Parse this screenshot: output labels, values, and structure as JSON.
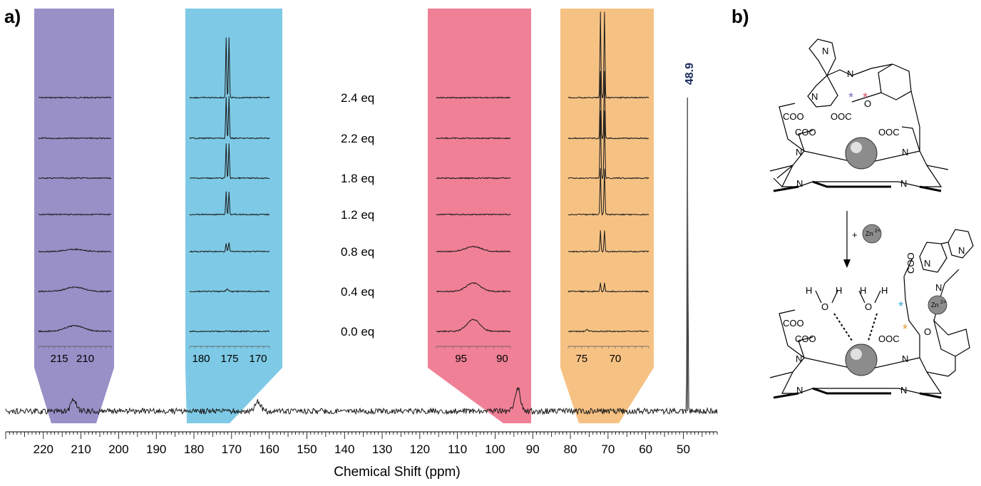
{
  "panel_labels": {
    "a": "a)",
    "b": "b)"
  },
  "colors": {
    "purple": "#9990c8",
    "blue": "#7ecae6",
    "pink": "#f08096",
    "orange": "#f6c284",
    "trace": "#1a1a1a",
    "navy": "#1a2a5a"
  },
  "chart_data": {
    "type": "line",
    "xlabel": "Chemical Shift (ppm)",
    "xlim": [
      230,
      41
    ],
    "x_ticks": [
      220,
      210,
      200,
      190,
      180,
      170,
      160,
      150,
      140,
      130,
      120,
      110,
      100,
      90,
      80,
      70,
      60,
      50
    ],
    "peak_label": "48.9",
    "main_spectrum_peaks": [
      {
        "x": 212,
        "height": 16
      },
      {
        "x": 163,
        "height": 14
      },
      {
        "x": 94,
        "height": 32
      },
      {
        "x": 48.9,
        "height": 440
      }
    ],
    "titration_labels": [
      "2.4 eq",
      "2.2 eq",
      "1.8 eq",
      "1.2 eq",
      "0.8 eq",
      "0.4 eq",
      "0.0 eq"
    ],
    "insets": [
      {
        "name": "purple",
        "color": "purple",
        "axis_labels": [
          "215",
          "210"
        ],
        "axis_values": [
          215,
          210
        ],
        "range": [
          219,
          205
        ],
        "peaks": [
          [],
          [],
          [],
          [],
          [
            {
              "x": 212,
              "h": 3,
              "w": 2.5
            }
          ],
          [
            {
              "x": 212,
              "h": 6,
              "w": 2.5
            }
          ],
          [
            {
              "x": 212,
              "h": 8,
              "w": 2.5
            }
          ]
        ]
      },
      {
        "name": "blue",
        "color": "blue",
        "axis_labels": [
          "180",
          "175",
          "170"
        ],
        "axis_values": [
          180,
          175,
          170
        ],
        "range": [
          182,
          168
        ],
        "peaks": [
          [
            {
              "x": 175.6,
              "h": 85,
              "w": 0.12
            },
            {
              "x": 175.1,
              "h": 85,
              "w": 0.12
            }
          ],
          [
            {
              "x": 175.6,
              "h": 58,
              "w": 0.12
            },
            {
              "x": 175.1,
              "h": 58,
              "w": 0.12
            }
          ],
          [
            {
              "x": 175.6,
              "h": 48,
              "w": 0.12
            },
            {
              "x": 175.1,
              "h": 48,
              "w": 0.12
            }
          ],
          [
            {
              "x": 175.6,
              "h": 32,
              "w": 0.12
            },
            {
              "x": 175.1,
              "h": 32,
              "w": 0.12
            }
          ],
          [
            {
              "x": 175.6,
              "h": 12,
              "w": 0.14
            },
            {
              "x": 175.1,
              "h": 12,
              "w": 0.14
            }
          ],
          [
            {
              "x": 175.4,
              "h": 3,
              "w": 0.3
            }
          ],
          []
        ]
      },
      {
        "name": "pink",
        "color": "pink",
        "axis_labels": [
          "95",
          "90"
        ],
        "axis_values": [
          95,
          90
        ],
        "range": [
          98,
          89
        ],
        "peaks": [
          [],
          [],
          [],
          [],
          [
            {
              "x": 93.5,
              "h": 7,
              "w": 1.4
            }
          ],
          [
            {
              "x": 93.5,
              "h": 12,
              "w": 1.2
            }
          ],
          [
            {
              "x": 93.5,
              "h": 17,
              "w": 1.1
            }
          ]
        ]
      },
      {
        "name": "orange",
        "color": "orange",
        "axis_labels": [
          "75",
          "70"
        ],
        "axis_values": [
          75,
          70
        ],
        "range": [
          77,
          65
        ],
        "peaks": [
          [
            {
              "x": 72.2,
              "h": 120,
              "w": 0.1
            },
            {
              "x": 71.6,
              "h": 120,
              "w": 0.1
            }
          ],
          [
            {
              "x": 72.2,
              "h": 95,
              "w": 0.1
            },
            {
              "x": 71.6,
              "h": 95,
              "w": 0.1
            }
          ],
          [
            {
              "x": 72.2,
              "h": 95,
              "w": 0.1
            },
            {
              "x": 71.6,
              "h": 95,
              "w": 0.1
            }
          ],
          [
            {
              "x": 72.2,
              "h": 65,
              "w": 0.1
            },
            {
              "x": 71.6,
              "h": 65,
              "w": 0.1
            }
          ],
          [
            {
              "x": 72.2,
              "h": 30,
              "w": 0.1
            },
            {
              "x": 71.6,
              "h": 30,
              "w": 0.1
            }
          ],
          [
            {
              "x": 72.2,
              "h": 12,
              "w": 0.1
            },
            {
              "x": 71.6,
              "h": 12,
              "w": 0.1
            }
          ],
          [
            {
              "x": 74.2,
              "h": 3,
              "w": 0.2
            }
          ]
        ]
      }
    ]
  },
  "structure": {
    "top": {
      "coo1": "COO",
      "coo2": "COO",
      "ooc1": "OOC",
      "ooc2": "OOC",
      "o": "O",
      "n1": "N",
      "n2": "N",
      "n3": "N",
      "n4": "N",
      "n5": "N",
      "py1": "N",
      "py2": "N",
      "minus": "-"
    },
    "arrow_label": "+",
    "zn_label": "Zn",
    "zn_charge": "2+",
    "bottom": {
      "h1": "H",
      "h2": "H",
      "h3": "H",
      "h4": "H",
      "o1": "O",
      "o2": "O",
      "coo1": "COO",
      "coo2": "COO",
      "coo3": "COO",
      "ooc": "OOC",
      "o": "O",
      "n1": "N",
      "n2": "N",
      "n3": "N",
      "n4": "N",
      "n5": "N",
      "py1": "N",
      "py2": "N",
      "minus": "-"
    },
    "stars": {
      "purple": "*",
      "pink": "*",
      "blue": "*",
      "orange": "*"
    }
  }
}
